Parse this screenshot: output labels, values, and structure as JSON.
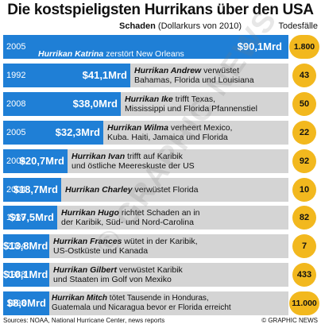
{
  "header": {
    "title": "Die kostspieligsten Hurrikans über den USA",
    "damage_label_bold": "Schaden",
    "damage_label_rest": " (Dollarkurs von 2010)",
    "deaths_label": "Todesfälle"
  },
  "footer": {
    "sources": "Sources: NOAA, National Hurricane Center, news reports",
    "brand": "© GRAPHIC NEWS"
  },
  "watermark": "© GRAPHIC NEWS",
  "colors": {
    "bar": "#1f7fd6",
    "row_bg": "#d4d4d4",
    "deaths_badge": "#f2b81e"
  },
  "chart_data": {
    "type": "bar",
    "title": "Die kostspieligsten Hurrikans über den USA",
    "value_unit": "Mrd US-Dollar (Dollarkurs von 2010)",
    "rows": [
      {
        "year": "2005",
        "name": "Hurrikan Katrina",
        "text": " zerstört New Orleans",
        "line2": "",
        "value": 90.1,
        "value_label": "$90,1Mrd",
        "deaths": "1.800"
      },
      {
        "year": "1992",
        "name": "Hurrikan Andrew",
        "text": " verwüstet",
        "line2": "Bahamas, Florida und Louisiana",
        "value": 41.1,
        "value_label": "$41,1Mrd",
        "deaths": "43"
      },
      {
        "year": "2008",
        "name": "Hurrikan Ike",
        "text": " trifft Texas,",
        "line2": "Mississippi und Florida Pfannenstiel",
        "value": 38.0,
        "value_label": "$38,0Mrd",
        "deaths": "50"
      },
      {
        "year": "2005",
        "name": "Hurrikan Wilma",
        "text": " verheert Mexico,",
        "line2": "Kuba. Haiti, Jamaica und Florida",
        "value": 32.3,
        "value_label": "$32,3Mrd",
        "deaths": "22"
      },
      {
        "year": "2004",
        "name": "Hurrikan Ivan",
        "text": " trifft auf Karibik",
        "line2": "und östliche Meereskuste der US",
        "value": 20.7,
        "value_label": "$20,7Mrd",
        "deaths": "92"
      },
      {
        "year": "2004",
        "name": "Hurrikan Charley",
        "text": " verwüstet Florida",
        "line2": "",
        "value": 18.7,
        "value_label": "$18,7Mrd",
        "deaths": "10"
      },
      {
        "year": "1989",
        "name": "Hurrikan Hugo",
        "text": " richtet Schaden an in",
        "line2": "der Karibik, Süd- und Nord-Carolina",
        "value": 17.5,
        "value_label": "$17,5Mrd",
        "deaths": "82"
      },
      {
        "year": "2004",
        "name": "Hurrikan Frances",
        "text": " wütet in der Karibik,",
        "line2": "US-Ostküste und Kanada",
        "value": 13.8,
        "value_label": "$13,8Mrd",
        "deaths": "7"
      },
      {
        "year": "1988",
        "name": "Hurrikan Gilbert",
        "text": " verwüstet Karibik",
        "line2": "und Staaten im Golf von Mexiko",
        "value": 10.1,
        "value_label": "$10,1Mrd",
        "deaths": "433"
      },
      {
        "year": "1998",
        "name": "Hurrikan Mitch",
        "text": " tötet Tausende in Honduras,",
        "line2": "Guatemala und Nicaragua bevor er Florida erreicht",
        "value": 8.0,
        "value_label": "$8,0Mrd",
        "deaths": "11.000"
      }
    ]
  }
}
